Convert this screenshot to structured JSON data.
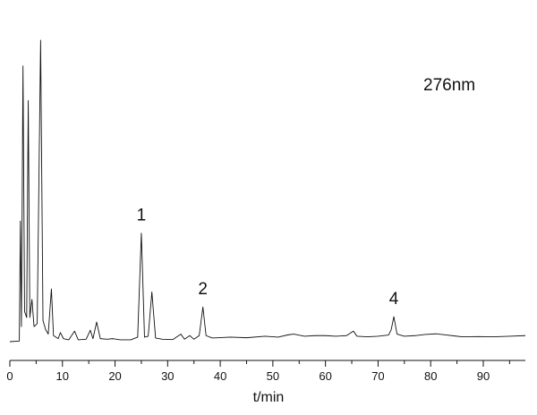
{
  "chart_data": {
    "type": "line",
    "title": "",
    "annotation_text": "276nm",
    "xlabel": "t/min",
    "ylabel": "",
    "xlim": [
      0,
      98
    ],
    "ylim": [
      0,
      100
    ],
    "x_ticks": [
      0,
      10,
      20,
      30,
      40,
      50,
      60,
      70,
      80,
      90
    ],
    "x_tick_labels": [
      "0",
      "10",
      "20",
      "30",
      "40",
      "50",
      "60",
      "70",
      "80",
      "90"
    ],
    "grid": false,
    "legend": "none",
    "series": [
      {
        "points": [
          [
            0.0,
            0.0
          ],
          [
            1.8,
            0.2
          ],
          [
            2.0,
            40.0
          ],
          [
            2.2,
            5.0
          ],
          [
            2.5,
            91.5
          ],
          [
            2.8,
            10.0
          ],
          [
            3.2,
            8.0
          ],
          [
            3.5,
            80.0
          ],
          [
            3.8,
            8.0
          ],
          [
            4.2,
            14.0
          ],
          [
            4.6,
            5.0
          ],
          [
            5.2,
            6.0
          ],
          [
            5.85,
            100.0
          ],
          [
            6.3,
            7.0
          ],
          [
            6.8,
            4.0
          ],
          [
            7.3,
            2.5
          ],
          [
            7.9,
            17.5
          ],
          [
            8.3,
            2.0
          ],
          [
            9.2,
            1.0
          ],
          [
            9.6,
            3.0
          ],
          [
            10.2,
            1.0
          ],
          [
            11.2,
            0.6
          ],
          [
            12.3,
            3.5
          ],
          [
            13.0,
            0.6
          ],
          [
            14.5,
            0.8
          ],
          [
            15.3,
            3.8
          ],
          [
            15.8,
            1.0
          ],
          [
            16.5,
            6.5
          ],
          [
            17.2,
            1.0
          ],
          [
            18.5,
            0.8
          ],
          [
            19.5,
            1.0
          ],
          [
            21.0,
            0.6
          ],
          [
            23.0,
            0.6
          ],
          [
            24.3,
            1.5
          ],
          [
            25.0,
            36.0
          ],
          [
            25.6,
            1.5
          ],
          [
            26.3,
            1.8
          ],
          [
            27.0,
            16.5
          ],
          [
            27.7,
            1.2
          ],
          [
            29.0,
            0.8
          ],
          [
            31.0,
            0.7
          ],
          [
            32.5,
            2.5
          ],
          [
            33.2,
            0.8
          ],
          [
            34.2,
            2.0
          ],
          [
            35.0,
            0.8
          ],
          [
            36.0,
            2.0
          ],
          [
            36.7,
            11.5
          ],
          [
            37.3,
            2.0
          ],
          [
            38.5,
            1.2
          ],
          [
            42.0,
            1.5
          ],
          [
            45.0,
            1.3
          ],
          [
            48.5,
            1.8
          ],
          [
            51.0,
            1.5
          ],
          [
            53.0,
            2.3
          ],
          [
            54.0,
            2.5
          ],
          [
            56.0,
            1.8
          ],
          [
            58.0,
            2.0
          ],
          [
            60.0,
            2.0
          ],
          [
            62.0,
            1.8
          ],
          [
            64.0,
            2.0
          ],
          [
            65.3,
            3.5
          ],
          [
            66.0,
            1.8
          ],
          [
            68.0,
            1.6
          ],
          [
            70.0,
            1.8
          ],
          [
            72.0,
            2.2
          ],
          [
            72.5,
            4.0
          ],
          [
            73.0,
            8.3
          ],
          [
            73.6,
            2.5
          ],
          [
            75.0,
            1.8
          ],
          [
            77.0,
            2.0
          ],
          [
            79.0,
            2.4
          ],
          [
            81.0,
            2.6
          ],
          [
            83.0,
            2.2
          ],
          [
            86.0,
            1.6
          ],
          [
            89.0,
            1.7
          ],
          [
            92.0,
            1.6
          ],
          [
            95.0,
            1.8
          ],
          [
            98.0,
            2.0
          ]
        ]
      }
    ],
    "annotations": [
      {
        "text": "1",
        "x": 25.0,
        "y": 36.0
      },
      {
        "text": "2",
        "x": 36.7,
        "y": 11.5
      },
      {
        "text": "4",
        "x": 73.0,
        "y": 8.3
      }
    ]
  }
}
